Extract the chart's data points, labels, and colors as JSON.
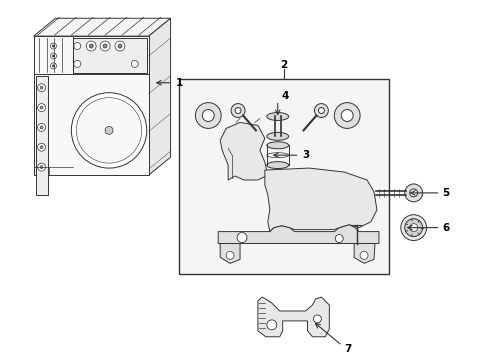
{
  "bg_color": "#ffffff",
  "line_color": "#333333",
  "gray_fill": "#f0f0f0",
  "light_fill": "#e8e8e8",
  "fig_width": 4.89,
  "fig_height": 3.6,
  "dpi": 100,
  "label_fontsize": 7.5
}
